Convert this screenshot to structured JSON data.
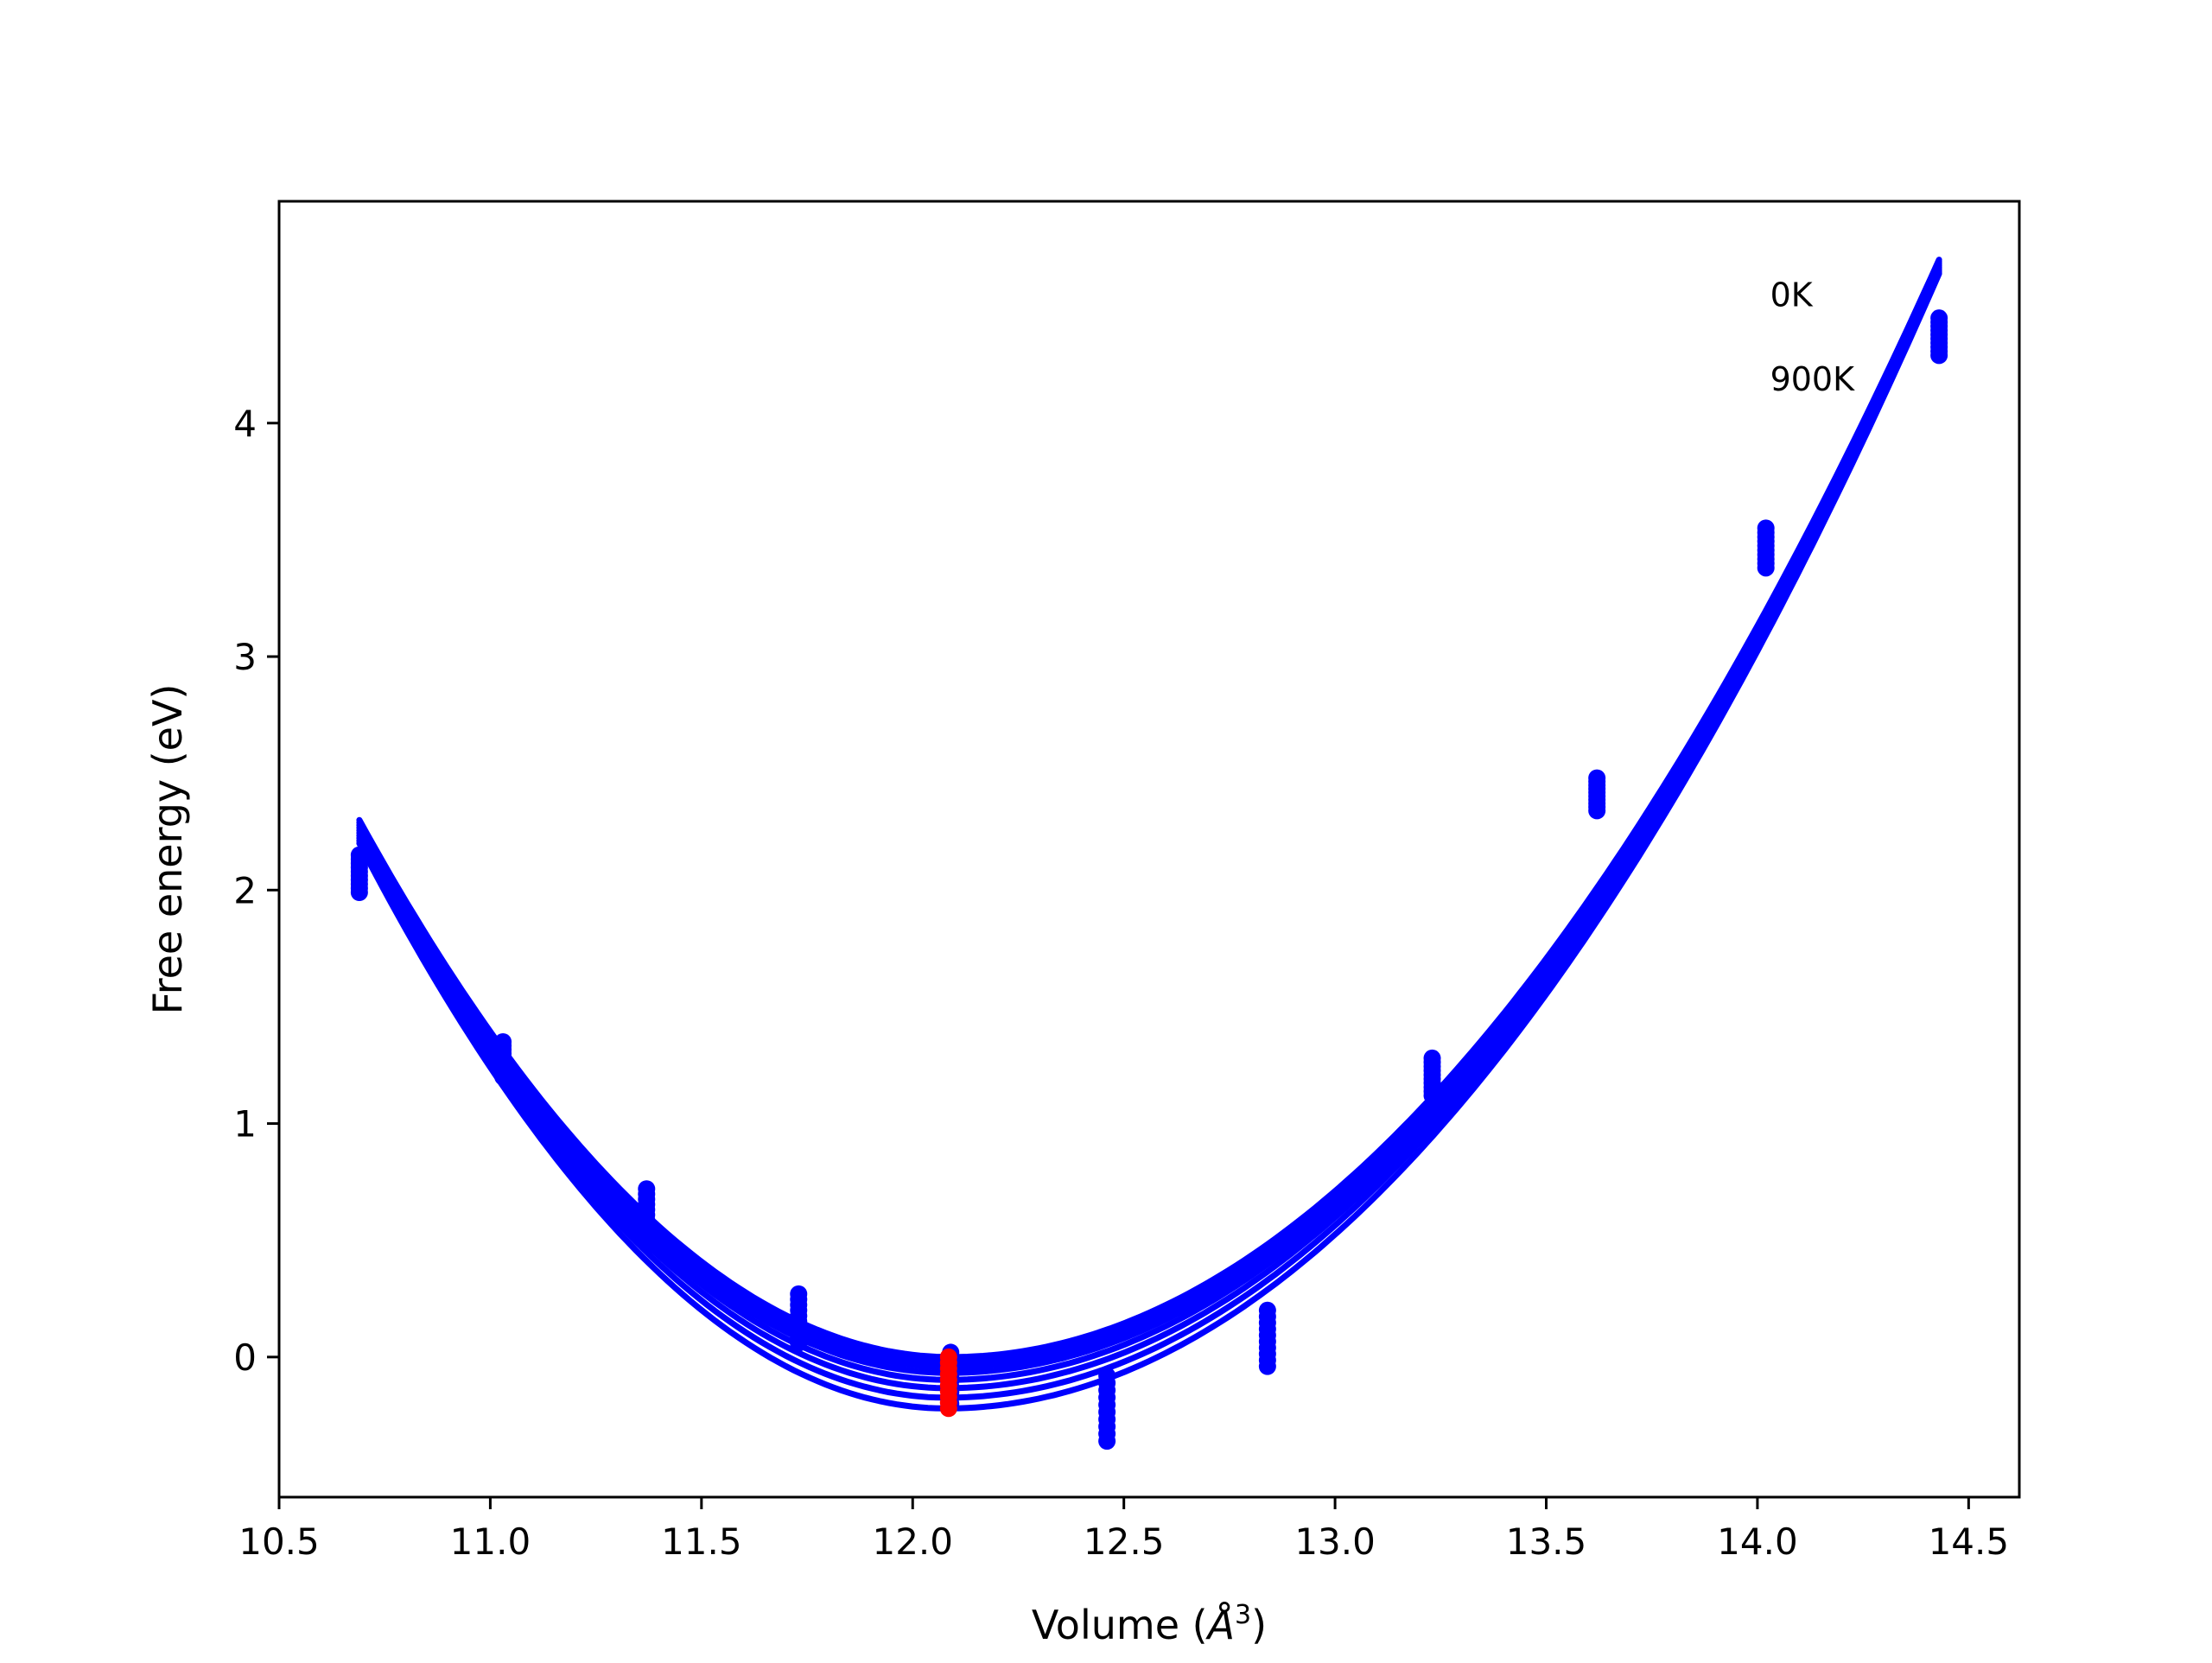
{
  "chart_data": {
    "type": "scatter",
    "xlabel_prefix": "Volume (",
    "xlabel_unit": "Å",
    "xlabel_exp": "3",
    "xlabel_suffix": ")",
    "ylabel": "Free energy (eV)",
    "xlim": [
      10.5,
      14.62
    ],
    "ylim": [
      -0.6,
      4.95
    ],
    "xticks": [
      10.5,
      11.0,
      11.5,
      12.0,
      12.5,
      13.0,
      13.5,
      14.0,
      14.5
    ],
    "xtick_labels": [
      "10.5",
      "11.0",
      "11.5",
      "12.0",
      "12.5",
      "13.0",
      "13.5",
      "14.0",
      "14.5"
    ],
    "yticks": [
      0,
      1,
      2,
      3,
      4
    ],
    "ytick_labels": [
      "0",
      "1",
      "2",
      "3",
      "4"
    ],
    "grid": false,
    "annotations": [
      {
        "text": "0K",
        "x": 14.03,
        "y": 4.5
      },
      {
        "text": "900K",
        "x": 14.03,
        "y": 4.14
      }
    ],
    "temperature_range_K": [
      0,
      900
    ],
    "fit_curve_range_x": [
      10.69,
      14.43
    ],
    "series": [
      {
        "color": "#0000ff",
        "volumes": [
          10.69,
          11.03,
          11.37,
          11.73,
          12.09,
          12.46,
          12.84,
          13.23,
          13.62,
          14.02,
          14.43
        ],
        "energy_range_0K": [
          2.15,
          1.35,
          0.72,
          0.27,
          0.02,
          -0.08,
          0.2,
          1.28,
          2.48,
          3.55,
          4.45
        ],
        "energy_range_900K": [
          1.99,
          1.2,
          0.52,
          0.06,
          -0.2,
          -0.36,
          -0.04,
          1.12,
          2.34,
          3.38,
          4.29
        ],
        "fit_min_volume_0K": 12.09,
        "fit_min_energy_0K": 0.0,
        "fit_min_volume_900K": 12.08,
        "fit_min_energy_900K": -0.22
      },
      {
        "color": "#ff0000",
        "volume": 12.085,
        "energy_range": [
          -0.22,
          0.0
        ]
      }
    ]
  }
}
